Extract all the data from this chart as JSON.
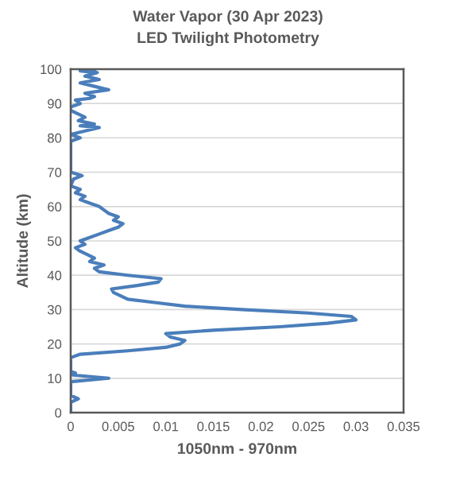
{
  "chart_data": {
    "type": "line",
    "title": "Water Vapor (30 Apr 2023)",
    "subtitle": "LED Twilight Photometry",
    "xlabel": "1050nm - 970nm",
    "ylabel": "Altitude (km)",
    "series": [
      {
        "color": "#4a7ebb",
        "x": [
          0,
          0,
          0.0008,
          0,
          0,
          0.004,
          0,
          0.0005,
          0,
          0,
          0.001,
          0.006,
          0.01,
          0.0115,
          0.012,
          0.0105,
          0.01,
          0.015,
          0.022,
          0.027,
          0.03,
          0.0295,
          0.025,
          0.018,
          0.012,
          0.009,
          0.006,
          0.0045,
          0.0043,
          0.007,
          0.0092,
          0.0095,
          0.006,
          0.003,
          0.0025,
          0.0035,
          0.002,
          0.0025,
          0.001,
          0.0005,
          0.0015,
          0.001,
          0.002,
          0.003,
          0.004,
          0.005,
          0.0055,
          0.0045,
          0.005,
          0.004,
          0.0035,
          0.003,
          0.002,
          0.001,
          0.0015,
          0.0005,
          0.001,
          0,
          0.0003,
          0.0012,
          0,
          0,
          0,
          0.001,
          0,
          0.003,
          0.001,
          0.0025,
          0.0008,
          0.0015,
          0,
          0,
          0.001,
          0.0005,
          0.002,
          0.0025,
          0.0015,
          0.004,
          0.0025,
          0.001,
          0.003,
          0.0015,
          0.0028,
          0.001,
          0.0025
        ],
        "values": [
          0,
          3,
          4,
          5,
          9,
          10,
          11,
          11.5,
          12,
          16,
          17,
          18,
          19,
          20,
          21,
          22,
          23,
          24,
          25,
          26,
          27,
          28,
          29,
          30,
          31,
          32,
          33,
          35,
          36,
          37,
          38,
          39,
          40,
          41,
          42,
          43,
          44,
          45,
          47,
          48,
          49,
          50,
          51,
          52,
          53,
          54,
          55,
          56,
          57,
          58,
          59,
          60,
          61,
          62,
          63,
          64,
          65,
          66,
          68,
          69,
          70,
          73,
          79,
          80,
          81,
          83,
          83.5,
          84,
          85,
          86,
          88,
          89,
          90,
          91,
          91.5,
          92,
          93,
          94,
          95,
          96,
          97,
          98,
          99,
          99.5,
          100
        ]
      }
    ],
    "xlim": [
      0,
      0.035
    ],
    "xticks": [
      0,
      0.005,
      0.01,
      0.015,
      0.02,
      0.025,
      0.03,
      0.035
    ],
    "ylim": [
      0,
      100
    ],
    "yticks": [
      0,
      10,
      20,
      30,
      40,
      50,
      60,
      70,
      80,
      90,
      100
    ],
    "grid": "y",
    "legend": false
  }
}
